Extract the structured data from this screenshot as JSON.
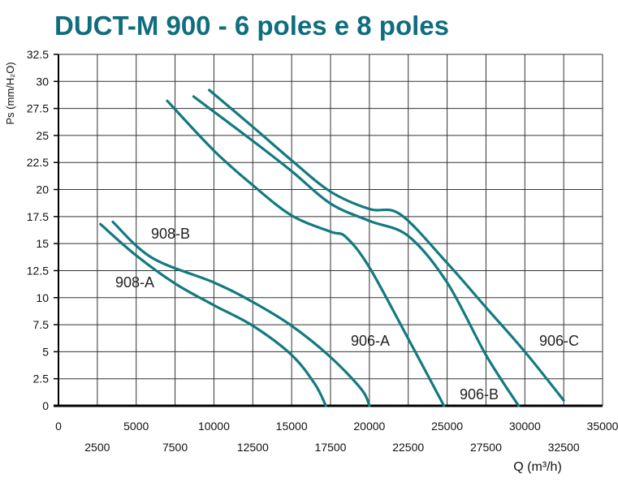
{
  "chart_data": {
    "type": "line",
    "title": "DUCT-M  900 - 6 poles e 8 poles",
    "xlabel": "Q (m³/h)",
    "ylabel": "Ps (mm/H₂O)",
    "xlim": [
      0,
      35000
    ],
    "ylim": [
      0,
      32.5
    ],
    "grid": true,
    "legend": "inline labels",
    "xticks_upper": [
      "0",
      "5000",
      "10000",
      "15000",
      "20000",
      "25000",
      "30000",
      "35000"
    ],
    "xticks_lower": [
      "2500",
      "7500",
      "12500",
      "17500",
      "22500",
      "27500",
      "32500"
    ],
    "yticks": [
      "0",
      "2.5",
      "5",
      "7.5",
      "10",
      "12.5",
      "15",
      "17.5",
      "20",
      "22.5",
      "25",
      "27.5",
      "30",
      "32.5"
    ],
    "series": [
      {
        "name": "908-A",
        "x": [
          2700,
          5000,
          7500,
          10000,
          12500,
          15000,
          16500,
          17200
        ],
        "y": [
          16.8,
          13.9,
          11.3,
          9.3,
          7.4,
          4.7,
          2.0,
          0
        ]
      },
      {
        "name": "908-B",
        "x": [
          3500,
          6000,
          10000,
          12500,
          15000,
          17500,
          19500,
          20000
        ],
        "y": [
          17.0,
          13.7,
          11.4,
          9.6,
          7.4,
          4.5,
          1.5,
          0
        ]
      },
      {
        "name": "906-A",
        "x": [
          7000,
          10000,
          12500,
          15000,
          17500,
          18500,
          20000,
          22500,
          24800
        ],
        "y": [
          28.2,
          23.6,
          20.4,
          17.6,
          16.1,
          15.6,
          12.8,
          6.2,
          0
        ]
      },
      {
        "name": "906-B",
        "x": [
          8700,
          12500,
          15000,
          17500,
          20000,
          22500,
          25000,
          27500,
          29600
        ],
        "y": [
          28.6,
          24.5,
          21.7,
          18.7,
          17.1,
          15.7,
          11.4,
          4.7,
          0
        ]
      },
      {
        "name": "906-C",
        "x": [
          9700,
          12500,
          15000,
          17500,
          20000,
          22000,
          25000,
          27500,
          30000,
          32500
        ],
        "y": [
          29.2,
          25.8,
          22.7,
          19.8,
          18.2,
          17.7,
          13.2,
          9.1,
          5.0,
          0.5
        ]
      }
    ],
    "annotations": [
      "908-B",
      "908-A",
      "906-A",
      "906-B",
      "906-C"
    ],
    "line_color": "#127a80",
    "title_color": "#0f6d7d"
  }
}
